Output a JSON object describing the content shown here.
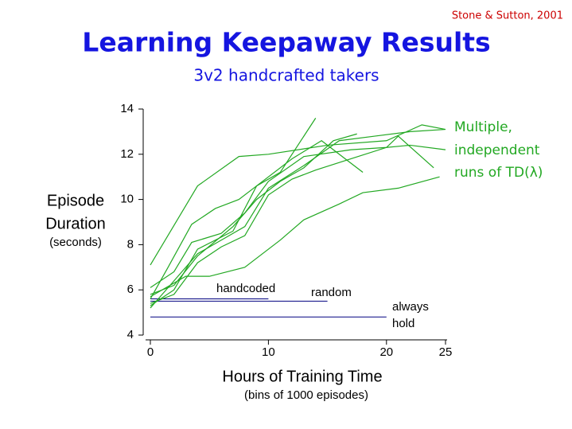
{
  "chart_data": {
    "type": "line",
    "citation": "Stone & Sutton, 2001",
    "title": "Learning Keepaway Results",
    "subtitle": "3v2 handcrafted takers",
    "y_label_lines": [
      "Episode",
      "Duration",
      "(seconds)"
    ],
    "x_label": "Hours of Training Time",
    "x_sublabel": "(bins of 1000 episodes)",
    "annotation_lines": [
      "Multiple,",
      "independent",
      "runs of TD(λ)"
    ],
    "xlim": [
      0,
      25
    ],
    "xticks": [
      0,
      10,
      20,
      25
    ],
    "ylim": [
      4,
      14
    ],
    "yticks": [
      4,
      6,
      8,
      10,
      12,
      14
    ],
    "series": [
      {
        "color": "#22a822",
        "x": [
          0,
          4,
          7.5,
          10,
          15,
          20,
          23,
          25
        ],
        "values": [
          7.1,
          10.6,
          11.9,
          12.0,
          12.4,
          12.6,
          13.3,
          13.1
        ]
      },
      {
        "color": "#22a822",
        "x": [
          0,
          3,
          5,
          8,
          9,
          11,
          13,
          16,
          18,
          21,
          24.5
        ],
        "values": [
          5.7,
          6.6,
          6.6,
          7.0,
          7.4,
          8.2,
          9.1,
          9.8,
          10.3,
          10.5,
          11.0
        ]
      },
      {
        "color": "#22a822",
        "x": [
          0,
          2,
          4,
          7,
          9,
          11,
          12.5,
          14
        ],
        "values": [
          5.3,
          6.0,
          7.8,
          8.6,
          10.6,
          11.2,
          12.4,
          13.6
        ]
      },
      {
        "color": "#22a822",
        "x": [
          0,
          1.5,
          3.5,
          5.5,
          7.5,
          9,
          12,
          14.5,
          16.5,
          18
        ],
        "values": [
          5.6,
          7.0,
          8.9,
          9.6,
          10.0,
          10.6,
          11.8,
          12.6,
          11.8,
          11.2
        ]
      },
      {
        "color": "#22a822",
        "x": [
          0,
          2,
          4,
          6,
          8,
          10,
          13,
          16,
          19,
          22,
          25
        ],
        "values": [
          5.2,
          6.4,
          7.6,
          8.2,
          8.8,
          10.5,
          11.5,
          12.6,
          12.8,
          13.0,
          13.1
        ]
      },
      {
        "color": "#22a822",
        "x": [
          0,
          2,
          3.5,
          6,
          8,
          10,
          13,
          17,
          20,
          22,
          25
        ],
        "values": [
          6.1,
          6.8,
          8.1,
          8.5,
          9.4,
          10.8,
          11.9,
          12.2,
          12.3,
          12.4,
          12.2
        ]
      },
      {
        "color": "#22a822",
        "x": [
          0,
          2,
          4,
          6,
          8,
          10,
          12,
          14,
          17,
          20,
          21,
          24
        ],
        "values": [
          5.4,
          5.8,
          7.2,
          7.9,
          8.4,
          10.2,
          10.9,
          11.3,
          11.8,
          12.3,
          12.8,
          11.4
        ]
      },
      {
        "color": "#22a822",
        "x": [
          0,
          2,
          4,
          7,
          9,
          11,
          13,
          15.5,
          17.5
        ],
        "values": [
          5.8,
          6.2,
          7.5,
          8.8,
          10.0,
          10.8,
          11.4,
          12.6,
          12.9
        ]
      }
    ],
    "reference_lines": [
      {
        "label_lines": [
          "handcoded"
        ],
        "value": 5.6,
        "x_end": 10,
        "color": "#000080"
      },
      {
        "label_lines": [
          "random"
        ],
        "value": 5.5,
        "x_end": 15,
        "color": "#000080"
      },
      {
        "label_lines": [
          "always",
          "hold"
        ],
        "value": 4.8,
        "x_end": 20,
        "color": "#000080"
      }
    ]
  }
}
